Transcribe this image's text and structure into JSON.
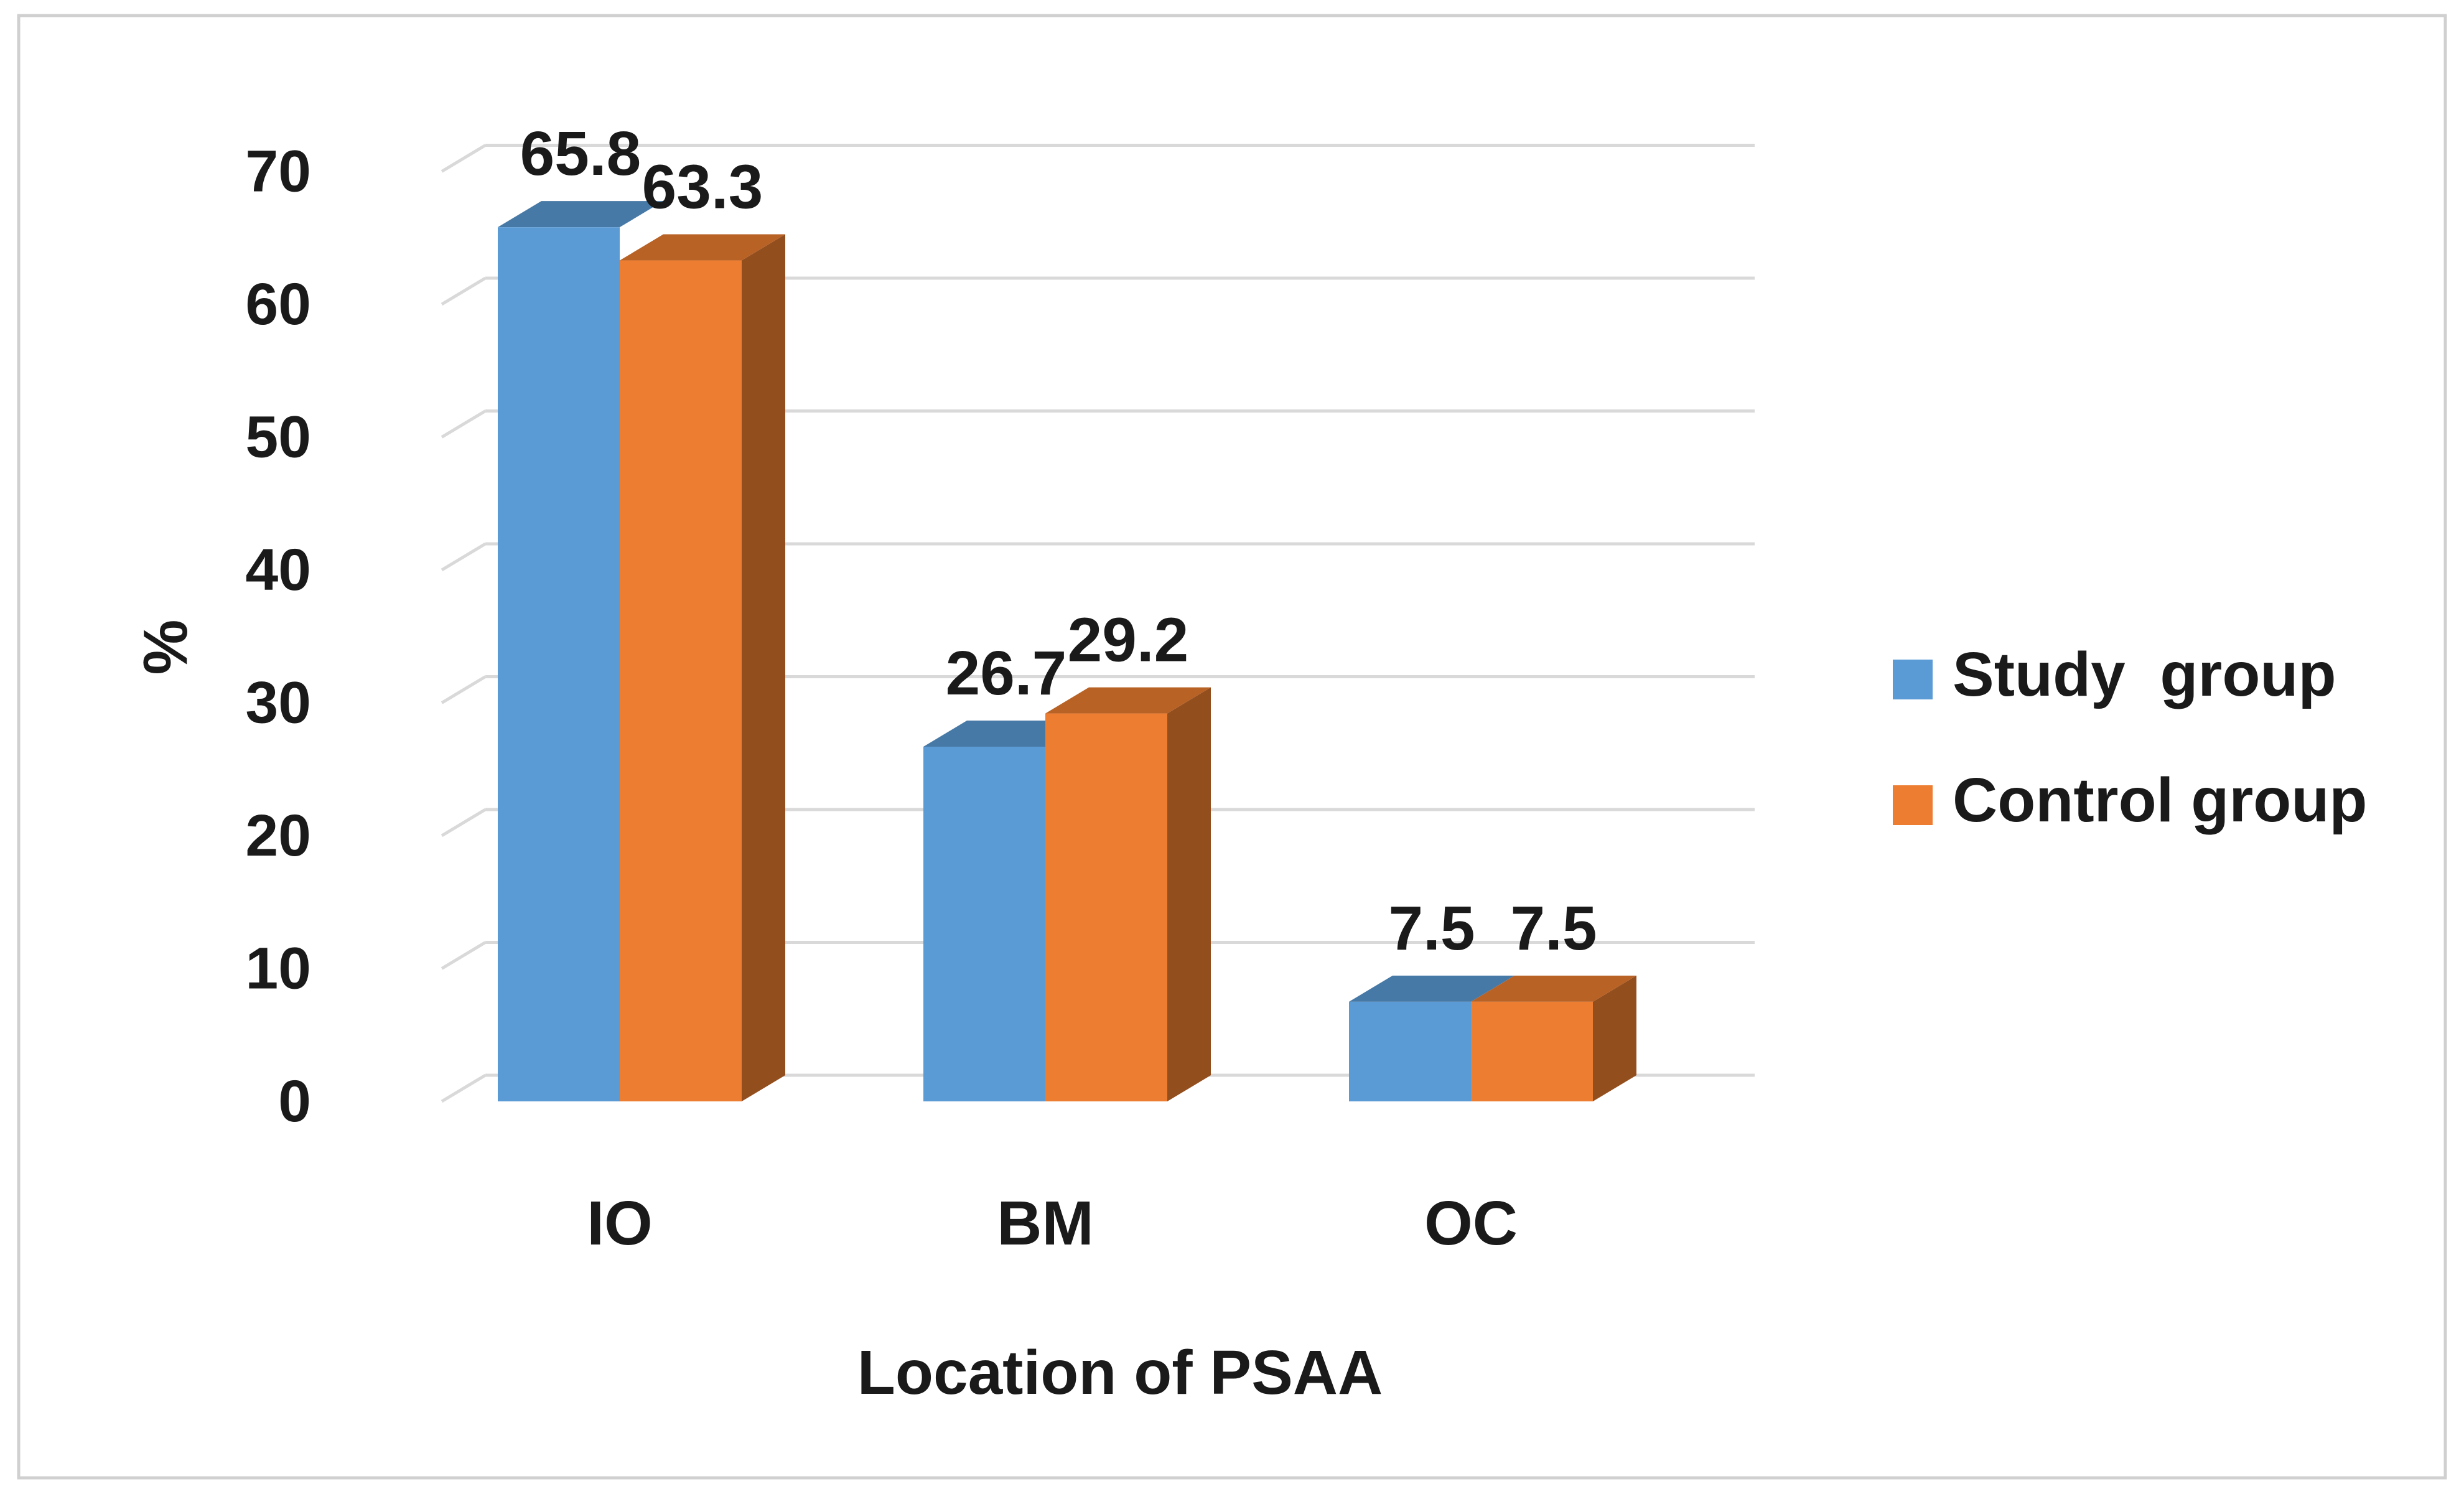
{
  "chart_data": {
    "type": "bar",
    "title": "",
    "xlabel": "Location of PSAA",
    "ylabel": "%",
    "categories": [
      "IO",
      "BM",
      "OC"
    ],
    "series": [
      {
        "name": "Study  group",
        "values": [
          65.8,
          26.7,
          7.5
        ],
        "data_labels": [
          "65.8",
          "26.7",
          "7.5"
        ],
        "color": "#5b9bd5"
      },
      {
        "name": "Control group",
        "values": [
          63.3,
          29.2,
          7.5
        ],
        "data_labels": [
          "63.3",
          "29.2",
          "7.5"
        ],
        "color": "#ed7d31"
      }
    ],
    "ylim": [
      0,
      70
    ],
    "yticks": [
      "0",
      "10",
      "20",
      "30",
      "40",
      "50",
      "60",
      "70"
    ],
    "grid": true,
    "style": "3d-clustered-column",
    "legend_position": "right"
  }
}
